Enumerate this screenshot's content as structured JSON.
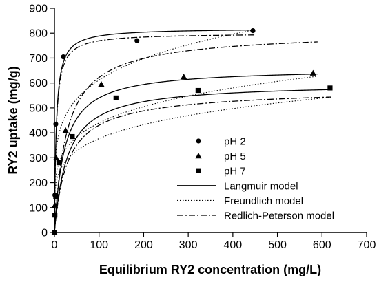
{
  "chart_data": {
    "type": "scatter",
    "title": "",
    "xlabel": "Equilibrium RY2 concentration (mg/L)",
    "ylabel": "RY2 uptake (mg/g)",
    "xlim": [
      0,
      700
    ],
    "ylim": [
      0,
      900
    ],
    "xticks": [
      "0",
      "100",
      "200",
      "300",
      "400",
      "500",
      "600",
      "700"
    ],
    "yticks": [
      "0",
      "100",
      "200",
      "300",
      "400",
      "500",
      "600",
      "700",
      "800",
      "900"
    ],
    "grid": false,
    "legend_position": "center-right",
    "series": [
      {
        "name": "pH 2",
        "marker": "circle",
        "x": [
          0,
          1,
          3,
          20,
          185,
          445
        ],
        "y": [
          0,
          150,
          435,
          705,
          770,
          810
        ]
      },
      {
        "name": "pH 5",
        "marker": "triangle",
        "x": [
          0,
          1,
          4,
          25,
          105,
          290,
          580
        ],
        "y": [
          0,
          110,
          300,
          410,
          595,
          625,
          640
        ]
      },
      {
        "name": "pH 7",
        "marker": "square",
        "x": [
          0,
          1,
          3,
          10,
          40,
          138,
          322,
          618
        ],
        "y": [
          0,
          70,
          145,
          280,
          385,
          540,
          570,
          580
        ]
      }
    ],
    "model_curves": [
      {
        "name": "Langmuir model",
        "style": "solid",
        "fits": [
          {
            "for": "pH 2",
            "qmax": 820,
            "K": 0.25,
            "x_max": 450
          },
          {
            "for": "pH 5",
            "qmax": 660,
            "K": 0.045,
            "x_max": 590
          },
          {
            "for": "pH 7",
            "qmax": 600,
            "K": 0.035,
            "x_max": 620
          }
        ]
      },
      {
        "name": "Freundlich model",
        "style": "dotted",
        "fits": [
          {
            "for": "pH 2",
            "Kf": 255,
            "n": 0.19,
            "x_max": 450
          },
          {
            "for": "pH 5",
            "Kf": 175,
            "n": 0.2,
            "x_max": 590
          },
          {
            "for": "pH 7",
            "Kf": 150,
            "n": 0.2,
            "x_max": 620
          }
        ]
      },
      {
        "name": "Redlich-Peterson model",
        "style": "dash-dot",
        "fits": [
          {
            "for": "pH 2",
            "KR": 200,
            "aR": 0.25,
            "beta": 1.0,
            "x_max": 450
          },
          {
            "for": "pH 5",
            "KR": 30,
            "aR": 0.04,
            "beta": 0.99,
            "x_max": 590
          },
          {
            "for": "pH 7",
            "KR": 20,
            "aR": 0.04,
            "beta": 0.98,
            "x_max": 620
          }
        ]
      }
    ],
    "legend": [
      {
        "label": "pH 2",
        "kind": "marker",
        "marker": "circle"
      },
      {
        "label": "pH 5",
        "kind": "marker",
        "marker": "triangle"
      },
      {
        "label": "pH 7",
        "kind": "marker",
        "marker": "square"
      },
      {
        "label": "Langmuir model",
        "kind": "line",
        "style": "solid"
      },
      {
        "label": "Freundlich model",
        "kind": "line",
        "style": "dotted"
      },
      {
        "label": "Redlich-Peterson model",
        "kind": "line",
        "style": "dash-dot"
      }
    ]
  }
}
